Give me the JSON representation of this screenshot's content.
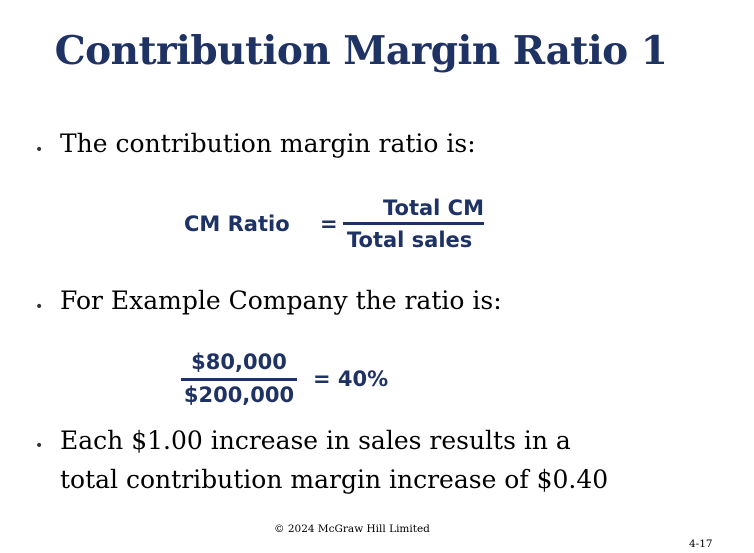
{
  "slide": {
    "title": "Contribution Margin Ratio 1",
    "bullets": [
      "The contribution margin ratio is:",
      "For Example Company the ratio is:",
      "Each $1.00 increase in sales results in a",
      "total contribution margin increase of $0.40"
    ],
    "formula1": {
      "lhs": "CM Ratio",
      "eq": "=",
      "numerator": "Total CM",
      "denominator": "Total sales"
    },
    "formula2": {
      "numerator": "$80,000",
      "denominator": "$200,000",
      "result": "= 40%"
    },
    "copyright": "© 2024 McGraw Hill Limited",
    "page_number": "4-17"
  }
}
